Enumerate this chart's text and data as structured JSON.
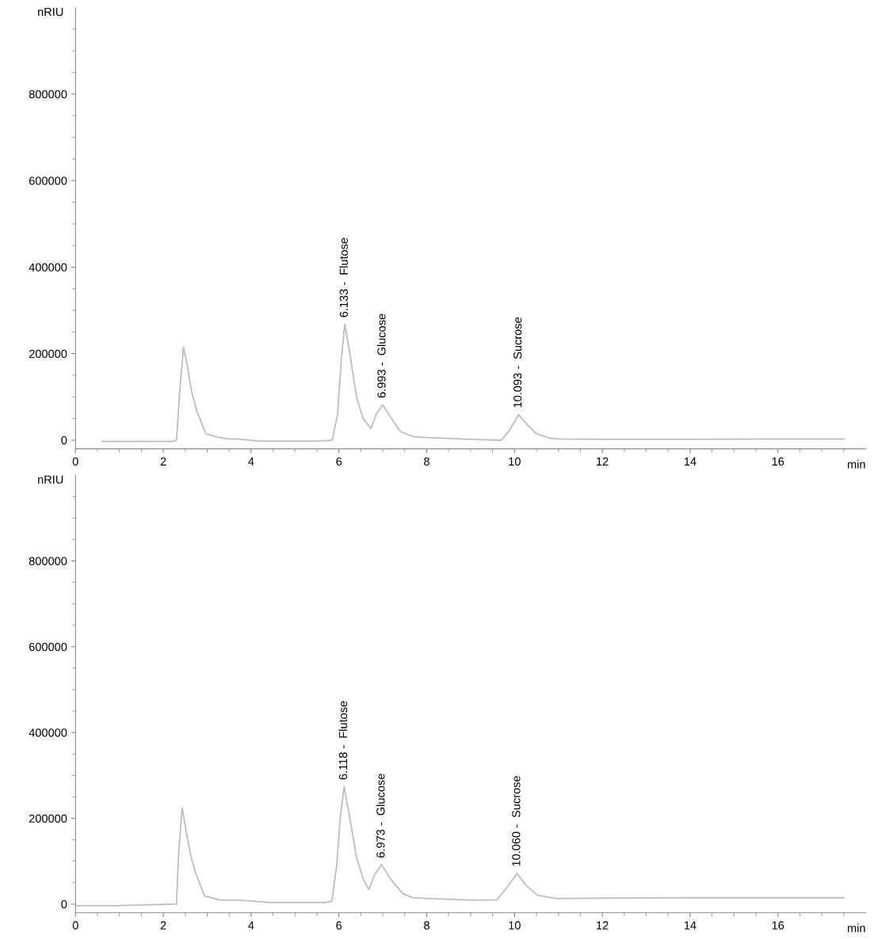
{
  "chart_data": [
    {
      "type": "line",
      "xlabel": "min",
      "ylabel": "nRIU",
      "xlim": [
        0,
        18
      ],
      "ylim": [
        -20000,
        1000000
      ],
      "xticks": [
        0,
        {
          "value": 0.5,
          "label": null
        },
        {
          "value": 1,
          "label": null
        },
        {
          "value": 1.5,
          "label": null
        },
        2,
        {
          "value": 2.5,
          "label": null
        },
        {
          "value": 3,
          "label": null
        },
        {
          "value": 3.5,
          "label": null
        },
        4,
        {
          "value": 4.5,
          "label": null
        },
        {
          "value": 5,
          "label": null
        },
        {
          "value": 5.5,
          "label": null
        },
        6,
        {
          "value": 6.5,
          "label": null
        },
        {
          "value": 7,
          "label": null
        },
        {
          "value": 7.5,
          "label": null
        },
        8,
        {
          "value": 8.5,
          "label": null
        },
        {
          "value": 9,
          "label": null
        },
        {
          "value": 9.5,
          "label": null
        },
        10,
        {
          "value": 10.5,
          "label": null
        },
        {
          "value": 11,
          "label": null
        },
        {
          "value": 11.5,
          "label": null
        },
        12,
        {
          "value": 12.5,
          "label": null
        },
        {
          "value": 13,
          "label": null
        },
        {
          "value": 13.5,
          "label": null
        },
        14,
        {
          "value": 14.5,
          "label": null
        },
        {
          "value": 15,
          "label": null
        },
        {
          "value": 15.5,
          "label": null
        },
        16,
        {
          "value": 16.5,
          "label": null
        },
        {
          "value": 17,
          "label": null
        },
        {
          "value": 17.5,
          "label": null
        }
      ],
      "yticks": [
        0,
        {
          "value": 50000,
          "label": null
        },
        {
          "value": 100000,
          "label": null
        },
        {
          "value": 150000,
          "label": null
        },
        200000,
        {
          "value": 250000,
          "label": null
        },
        {
          "value": 300000,
          "label": null
        },
        {
          "value": 350000,
          "label": null
        },
        400000,
        {
          "value": 450000,
          "label": null
        },
        {
          "value": 500000,
          "label": null
        },
        {
          "value": 550000,
          "label": null
        },
        600000,
        {
          "value": 650000,
          "label": null
        },
        {
          "value": 700000,
          "label": null
        },
        {
          "value": 750000,
          "label": null
        },
        800000,
        {
          "value": 850000,
          "label": null
        },
        {
          "value": 900000,
          "label": null
        },
        {
          "value": 950000,
          "label": null
        }
      ],
      "grid": false,
      "legend": false,
      "marker": "none",
      "line_style": "solid",
      "series": [
        {
          "color": "#bdbdbd",
          "x": [
            0.6,
            1.5,
            2.2,
            2.3,
            2.38,
            2.46,
            2.55,
            2.65,
            2.76,
            2.97,
            3.2,
            3.47,
            3.68,
            4.18,
            4.9,
            5.5,
            5.85,
            5.97,
            6.05,
            6.133,
            6.25,
            6.4,
            6.55,
            6.73,
            6.85,
            6.993,
            7.2,
            7.4,
            7.7,
            8.0,
            9.0,
            9.7,
            9.9,
            10.093,
            10.3,
            10.5,
            10.8,
            11.0,
            12.0,
            14.0,
            16.0,
            17.5
          ],
          "values": [
            -3000,
            -3000,
            -3000,
            0,
            120000,
            215000,
            170000,
            110000,
            68000,
            15000,
            8000,
            3000,
            3000,
            -2000,
            -2000,
            -2000,
            0,
            60000,
            180000,
            268000,
            200000,
            100000,
            50000,
            27000,
            60000,
            82000,
            50000,
            20000,
            8000,
            6000,
            2000,
            0,
            25000,
            59000,
            35000,
            15000,
            5000,
            3000,
            2000,
            2000,
            3000,
            3000
          ]
        }
      ],
      "annotations": [
        {
          "text": "6.133 -  Flutose",
          "x": 6.133,
          "y": 268000
        },
        {
          "text": "6.993 -  Glucose",
          "x": 6.993,
          "y": 82000
        },
        {
          "text": "10.093 -  Sucrose",
          "x": 10.093,
          "y": 59000
        }
      ]
    },
    {
      "type": "line",
      "xlabel": "min",
      "ylabel": "nRIU",
      "xlim": [
        0,
        18
      ],
      "ylim": [
        -20000,
        1000000
      ],
      "xticks": [
        0,
        {
          "value": 0.5,
          "label": null
        },
        {
          "value": 1,
          "label": null
        },
        {
          "value": 1.5,
          "label": null
        },
        2,
        {
          "value": 2.5,
          "label": null
        },
        {
          "value": 3,
          "label": null
        },
        {
          "value": 3.5,
          "label": null
        },
        4,
        {
          "value": 4.5,
          "label": null
        },
        {
          "value": 5,
          "label": null
        },
        {
          "value": 5.5,
          "label": null
        },
        6,
        {
          "value": 6.5,
          "label": null
        },
        {
          "value": 7,
          "label": null
        },
        {
          "value": 7.5,
          "label": null
        },
        8,
        {
          "value": 8.5,
          "label": null
        },
        {
          "value": 9,
          "label": null
        },
        {
          "value": 9.5,
          "label": null
        },
        10,
        {
          "value": 10.5,
          "label": null
        },
        {
          "value": 11,
          "label": null
        },
        {
          "value": 11.5,
          "label": null
        },
        12,
        {
          "value": 12.5,
          "label": null
        },
        {
          "value": 13,
          "label": null
        },
        {
          "value": 13.5,
          "label": null
        },
        14,
        {
          "value": 14.5,
          "label": null
        },
        {
          "value": 15,
          "label": null
        },
        {
          "value": 15.5,
          "label": null
        },
        16,
        {
          "value": 16.5,
          "label": null
        },
        {
          "value": 17,
          "label": null
        },
        {
          "value": 17.5,
          "label": null
        }
      ],
      "yticks": [
        0,
        {
          "value": 50000,
          "label": null
        },
        {
          "value": 100000,
          "label": null
        },
        {
          "value": 150000,
          "label": null
        },
        200000,
        {
          "value": 250000,
          "label": null
        },
        {
          "value": 300000,
          "label": null
        },
        {
          "value": 350000,
          "label": null
        },
        400000,
        {
          "value": 450000,
          "label": null
        },
        {
          "value": 500000,
          "label": null
        },
        {
          "value": 550000,
          "label": null
        },
        600000,
        {
          "value": 650000,
          "label": null
        },
        {
          "value": 700000,
          "label": null
        },
        {
          "value": 750000,
          "label": null
        },
        800000,
        {
          "value": 850000,
          "label": null
        },
        {
          "value": 900000,
          "label": null
        },
        {
          "value": 950000,
          "label": null
        }
      ],
      "grid": false,
      "legend": false,
      "marker": "none",
      "line_style": "solid",
      "series": [
        {
          "color": "#bdbdbd",
          "x": [
            0.03,
            0.9,
            2.3,
            2.35,
            2.43,
            2.52,
            2.62,
            2.73,
            2.94,
            3.3,
            3.72,
            4.43,
            5.7,
            5.84,
            5.95,
            6.03,
            6.118,
            6.25,
            6.4,
            6.55,
            6.68,
            6.82,
            6.973,
            7.2,
            7.45,
            7.68,
            8.04,
            9.0,
            9.6,
            9.8,
            10.06,
            10.25,
            10.52,
            10.95,
            12.0,
            14.0,
            16.0,
            17.5
          ],
          "values": [
            -3600,
            -3600,
            0,
            120000,
            225000,
            170000,
            115000,
            74000,
            19000,
            9500,
            9500,
            4000,
            4000,
            7000,
            90000,
            200000,
            274000,
            200000,
            110000,
            60000,
            34000,
            70000,
            92000,
            55000,
            25000,
            15000,
            13000,
            9500,
            10000,
            35000,
            72000,
            45000,
            21000,
            13000,
            14000,
            15000,
            15000,
            15000
          ]
        }
      ],
      "annotations": [
        {
          "text": "6.118 -  Flutose",
          "x": 6.118,
          "y": 274000
        },
        {
          "text": "6.973 -  Glucose",
          "x": 6.973,
          "y": 92000
        },
        {
          "text": "10.060 -  Sucrose",
          "x": 10.06,
          "y": 72000
        }
      ]
    }
  ]
}
